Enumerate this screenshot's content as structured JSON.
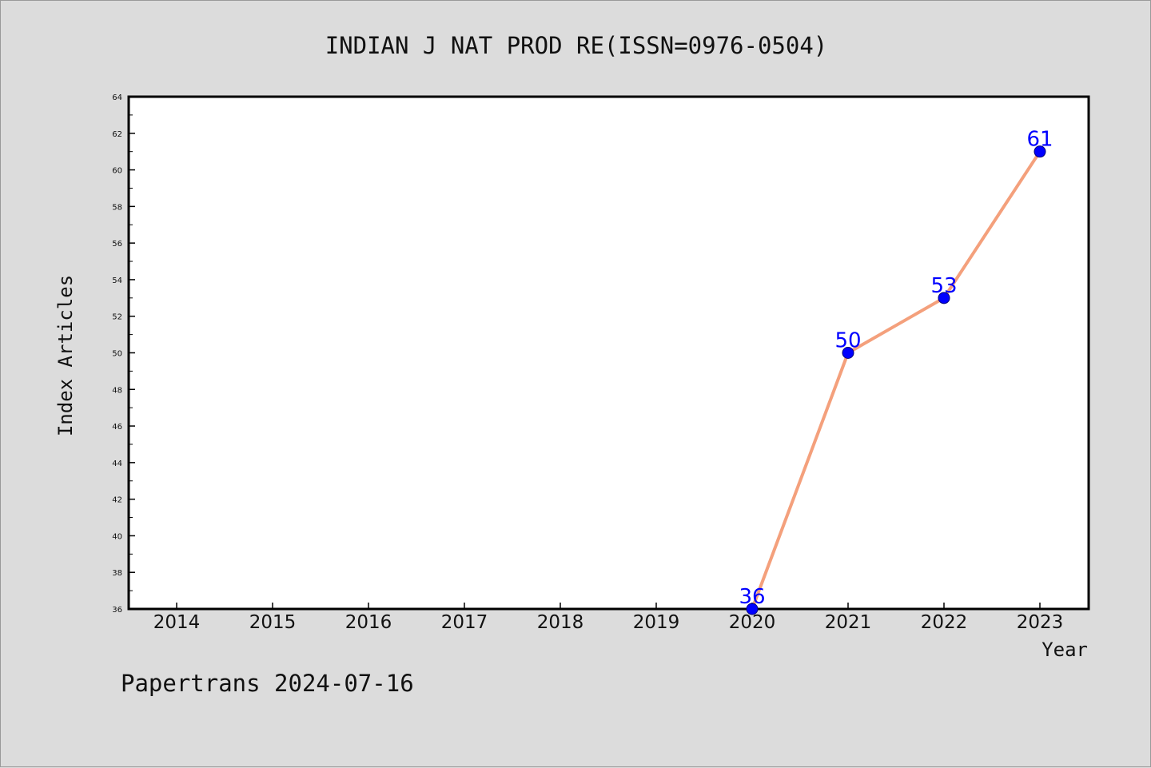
{
  "chart_data": {
    "type": "line",
    "title": "INDIAN J NAT PROD RE(ISSN=0976-0504)",
    "xlabel": "Year",
    "ylabel": "Index Articles",
    "categories": [
      "2014",
      "2015",
      "2016",
      "2017",
      "2018",
      "2019",
      "2020",
      "2021",
      "2022",
      "2023"
    ],
    "y_ticks": [
      "36",
      "38",
      "40",
      "42",
      "44",
      "46",
      "48",
      "50",
      "52",
      "54",
      "56",
      "58",
      "60",
      "62",
      "64"
    ],
    "ylim": [
      36,
      64
    ],
    "series": [
      {
        "x": [
          "2020",
          "2021",
          "2022",
          "2023"
        ],
        "values": [
          36,
          50,
          53,
          61
        ],
        "labels": [
          "36",
          "50",
          "53",
          "61"
        ]
      }
    ],
    "line_color": "#f4a07c",
    "marker_color": "#0000ff",
    "label_color": "#0000ff",
    "grid": false,
    "legend": "none"
  },
  "footer": "Papertrans 2024-07-16"
}
